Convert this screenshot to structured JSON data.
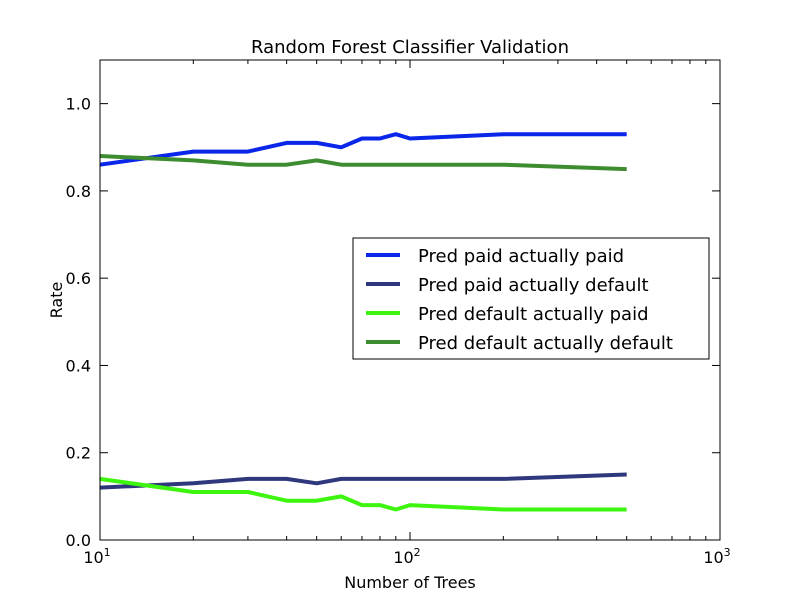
{
  "chart_data": {
    "type": "line",
    "title": "Random Forest Classifier Validation",
    "xlabel": "Number of Trees",
    "ylabel": "Rate",
    "xscale": "log",
    "xlim": [
      10,
      1000
    ],
    "ylim": [
      0.0,
      1.1
    ],
    "grid": false,
    "legend_position": "center-right",
    "x_ticks": [
      {
        "value": 10,
        "base": "10",
        "exp": "1"
      },
      {
        "value": 100,
        "base": "10",
        "exp": "2"
      },
      {
        "value": 1000,
        "base": "10",
        "exp": "3"
      }
    ],
    "y_ticks": [
      {
        "value": 0.0,
        "label": "0.0"
      },
      {
        "value": 0.2,
        "label": "0.2"
      },
      {
        "value": 0.4,
        "label": "0.4"
      },
      {
        "value": 0.6,
        "label": "0.6"
      },
      {
        "value": 0.8,
        "label": "0.8"
      },
      {
        "value": 1.0,
        "label": "1.0"
      }
    ],
    "x": [
      10,
      20,
      30,
      40,
      50,
      60,
      70,
      80,
      90,
      100,
      200,
      500
    ],
    "series": [
      {
        "name": "Pred paid actually paid",
        "color": "#0a26e8",
        "values": [
          0.86,
          0.89,
          0.89,
          0.91,
          0.91,
          0.9,
          0.92,
          0.92,
          0.93,
          0.92,
          0.93,
          0.93
        ]
      },
      {
        "name": "Pred paid actually default",
        "color": "#30387d",
        "values": [
          0.12,
          0.13,
          0.14,
          0.14,
          0.13,
          0.14,
          0.14,
          0.14,
          0.14,
          0.14,
          0.14,
          0.15
        ]
      },
      {
        "name": "Pred default actually paid",
        "color": "#3df50f",
        "values": [
          0.14,
          0.11,
          0.11,
          0.09,
          0.09,
          0.1,
          0.08,
          0.08,
          0.07,
          0.08,
          0.07,
          0.07
        ]
      },
      {
        "name": "Pred default actually default",
        "color": "#3e8c30",
        "values": [
          0.88,
          0.87,
          0.86,
          0.86,
          0.87,
          0.86,
          0.86,
          0.86,
          0.86,
          0.86,
          0.86,
          0.85
        ]
      }
    ]
  }
}
